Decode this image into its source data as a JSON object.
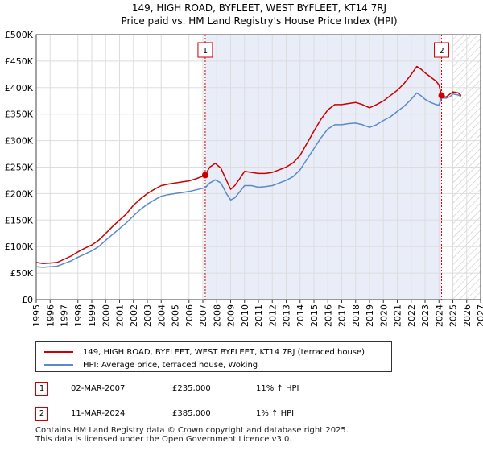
{
  "chart_data": {
    "type": "line",
    "title": "149, HIGH ROAD, BYFLEET, WEST BYFLEET, KT14 7RJ",
    "subtitle": "Price paid vs. HM Land Registry's House Price Index (HPI)",
    "xlim": [
      1995,
      2027
    ],
    "ylim": [
      0,
      500000
    ],
    "x_ticks": [
      "1995",
      "1996",
      "1997",
      "1998",
      "1999",
      "2000",
      "2001",
      "2002",
      "2003",
      "2004",
      "2005",
      "2006",
      "2007",
      "2008",
      "2009",
      "2010",
      "2011",
      "2012",
      "2013",
      "2014",
      "2015",
      "2016",
      "2017",
      "2018",
      "2019",
      "2020",
      "2021",
      "2022",
      "2023",
      "2024",
      "2025",
      "2026",
      "2027"
    ],
    "y_ticks": [
      {
        "value": 0,
        "label": "£0"
      },
      {
        "value": 50000,
        "label": "£50K"
      },
      {
        "value": 100000,
        "label": "£100K"
      },
      {
        "value": 150000,
        "label": "£150K"
      },
      {
        "value": 200000,
        "label": "£200K"
      },
      {
        "value": 250000,
        "label": "£250K"
      },
      {
        "value": 300000,
        "label": "£300K"
      },
      {
        "value": 350000,
        "label": "£350K"
      },
      {
        "value": 400000,
        "label": "£400K"
      },
      {
        "value": 450000,
        "label": "£450K"
      },
      {
        "value": 500000,
        "label": "£500K"
      }
    ],
    "shaded_between": [
      2007.17,
      2024.19
    ],
    "hatched_from": 2025.0,
    "series": [
      {
        "name": "149, HIGH ROAD, BYFLEET, WEST BYFLEET, KT14 7RJ (terraced house)",
        "color": "#cc0000",
        "points": [
          [
            1995.0,
            70000
          ],
          [
            1995.5,
            68000
          ],
          [
            1996.0,
            69000
          ],
          [
            1996.5,
            70000
          ],
          [
            1997.0,
            76000
          ],
          [
            1997.5,
            82000
          ],
          [
            1998.0,
            90000
          ],
          [
            1998.5,
            97000
          ],
          [
            1999.0,
            103000
          ],
          [
            1999.5,
            112000
          ],
          [
            2000.0,
            125000
          ],
          [
            2000.5,
            138000
          ],
          [
            2001.0,
            150000
          ],
          [
            2001.5,
            162000
          ],
          [
            2002.0,
            178000
          ],
          [
            2002.5,
            190000
          ],
          [
            2003.0,
            200000
          ],
          [
            2003.5,
            208000
          ],
          [
            2004.0,
            215000
          ],
          [
            2004.5,
            218000
          ],
          [
            2005.0,
            220000
          ],
          [
            2005.5,
            222000
          ],
          [
            2006.0,
            224000
          ],
          [
            2006.5,
            228000
          ],
          [
            2007.0,
            233000
          ],
          [
            2007.17,
            235000
          ],
          [
            2007.5,
            250000
          ],
          [
            2007.9,
            257000
          ],
          [
            2008.3,
            248000
          ],
          [
            2008.7,
            225000
          ],
          [
            2009.0,
            208000
          ],
          [
            2009.3,
            215000
          ],
          [
            2009.7,
            230000
          ],
          [
            2010.0,
            242000
          ],
          [
            2010.5,
            240000
          ],
          [
            2011.0,
            238000
          ],
          [
            2011.5,
            238000
          ],
          [
            2012.0,
            240000
          ],
          [
            2012.5,
            245000
          ],
          [
            2013.0,
            250000
          ],
          [
            2013.5,
            258000
          ],
          [
            2014.0,
            272000
          ],
          [
            2014.5,
            295000
          ],
          [
            2015.0,
            318000
          ],
          [
            2015.5,
            340000
          ],
          [
            2016.0,
            358000
          ],
          [
            2016.5,
            368000
          ],
          [
            2017.0,
            368000
          ],
          [
            2017.5,
            370000
          ],
          [
            2018.0,
            372000
          ],
          [
            2018.5,
            368000
          ],
          [
            2019.0,
            362000
          ],
          [
            2019.5,
            368000
          ],
          [
            2020.0,
            375000
          ],
          [
            2020.5,
            385000
          ],
          [
            2021.0,
            395000
          ],
          [
            2021.5,
            408000
          ],
          [
            2022.0,
            425000
          ],
          [
            2022.4,
            440000
          ],
          [
            2022.7,
            435000
          ],
          [
            2023.0,
            428000
          ],
          [
            2023.4,
            420000
          ],
          [
            2023.8,
            412000
          ],
          [
            2024.0,
            405000
          ],
          [
            2024.19,
            385000
          ],
          [
            2024.5,
            382000
          ],
          [
            2024.8,
            388000
          ],
          [
            2025.0,
            392000
          ],
          [
            2025.4,
            390000
          ],
          [
            2025.6,
            385000
          ]
        ]
      },
      {
        "name": "HPI: Average price, terraced house, Woking",
        "color": "#5b8ac6",
        "points": [
          [
            1995.0,
            62000
          ],
          [
            1995.5,
            61000
          ],
          [
            1996.0,
            62000
          ],
          [
            1996.5,
            63000
          ],
          [
            1997.0,
            68000
          ],
          [
            1997.5,
            73000
          ],
          [
            1998.0,
            80000
          ],
          [
            1998.5,
            86000
          ],
          [
            1999.0,
            92000
          ],
          [
            1999.5,
            100000
          ],
          [
            2000.0,
            112000
          ],
          [
            2000.5,
            123000
          ],
          [
            2001.0,
            134000
          ],
          [
            2001.5,
            145000
          ],
          [
            2002.0,
            158000
          ],
          [
            2002.5,
            170000
          ],
          [
            2003.0,
            180000
          ],
          [
            2003.5,
            188000
          ],
          [
            2004.0,
            195000
          ],
          [
            2004.5,
            198000
          ],
          [
            2005.0,
            200000
          ],
          [
            2005.5,
            202000
          ],
          [
            2006.0,
            204000
          ],
          [
            2006.5,
            207000
          ],
          [
            2007.0,
            210000
          ],
          [
            2007.17,
            211000
          ],
          [
            2007.5,
            220000
          ],
          [
            2007.9,
            226000
          ],
          [
            2008.3,
            220000
          ],
          [
            2008.7,
            200000
          ],
          [
            2009.0,
            188000
          ],
          [
            2009.3,
            192000
          ],
          [
            2009.7,
            205000
          ],
          [
            2010.0,
            215000
          ],
          [
            2010.5,
            215000
          ],
          [
            2011.0,
            212000
          ],
          [
            2011.5,
            213000
          ],
          [
            2012.0,
            215000
          ],
          [
            2012.5,
            220000
          ],
          [
            2013.0,
            225000
          ],
          [
            2013.5,
            232000
          ],
          [
            2014.0,
            245000
          ],
          [
            2014.5,
            265000
          ],
          [
            2015.0,
            285000
          ],
          [
            2015.5,
            305000
          ],
          [
            2016.0,
            322000
          ],
          [
            2016.5,
            330000
          ],
          [
            2017.0,
            330000
          ],
          [
            2017.5,
            332000
          ],
          [
            2018.0,
            333000
          ],
          [
            2018.5,
            330000
          ],
          [
            2019.0,
            325000
          ],
          [
            2019.5,
            330000
          ],
          [
            2020.0,
            338000
          ],
          [
            2020.5,
            345000
          ],
          [
            2021.0,
            355000
          ],
          [
            2021.5,
            365000
          ],
          [
            2022.0,
            378000
          ],
          [
            2022.4,
            390000
          ],
          [
            2022.7,
            385000
          ],
          [
            2023.0,
            378000
          ],
          [
            2023.4,
            372000
          ],
          [
            2023.8,
            368000
          ],
          [
            2024.0,
            367000
          ],
          [
            2024.19,
            381000
          ],
          [
            2024.5,
            380000
          ],
          [
            2024.8,
            383000
          ],
          [
            2025.0,
            388000
          ],
          [
            2025.4,
            386000
          ],
          [
            2025.6,
            383000
          ]
        ]
      }
    ],
    "markers": [
      {
        "label": "1",
        "x": 2007.17,
        "y": 235000
      },
      {
        "label": "2",
        "x": 2024.19,
        "y": 385000
      }
    ],
    "legend": [
      {
        "label": "149, HIGH ROAD, BYFLEET, WEST BYFLEET, KT14 7RJ (terraced house)",
        "color": "#cc0000"
      },
      {
        "label": "HPI: Average price, terraced house, Woking",
        "color": "#5b8ac6"
      }
    ]
  },
  "sales": [
    {
      "num": "1",
      "date": "02-MAR-2007",
      "price": "£235,000",
      "hpi": "11% ↑ HPI"
    },
    {
      "num": "2",
      "date": "11-MAR-2024",
      "price": "£385,000",
      "hpi": "1% ↑ HPI"
    }
  ],
  "footer": {
    "line1": "Contains HM Land Registry data © Crown copyright and database right 2025.",
    "line2": "This data is licensed under the Open Government Licence v3.0."
  }
}
